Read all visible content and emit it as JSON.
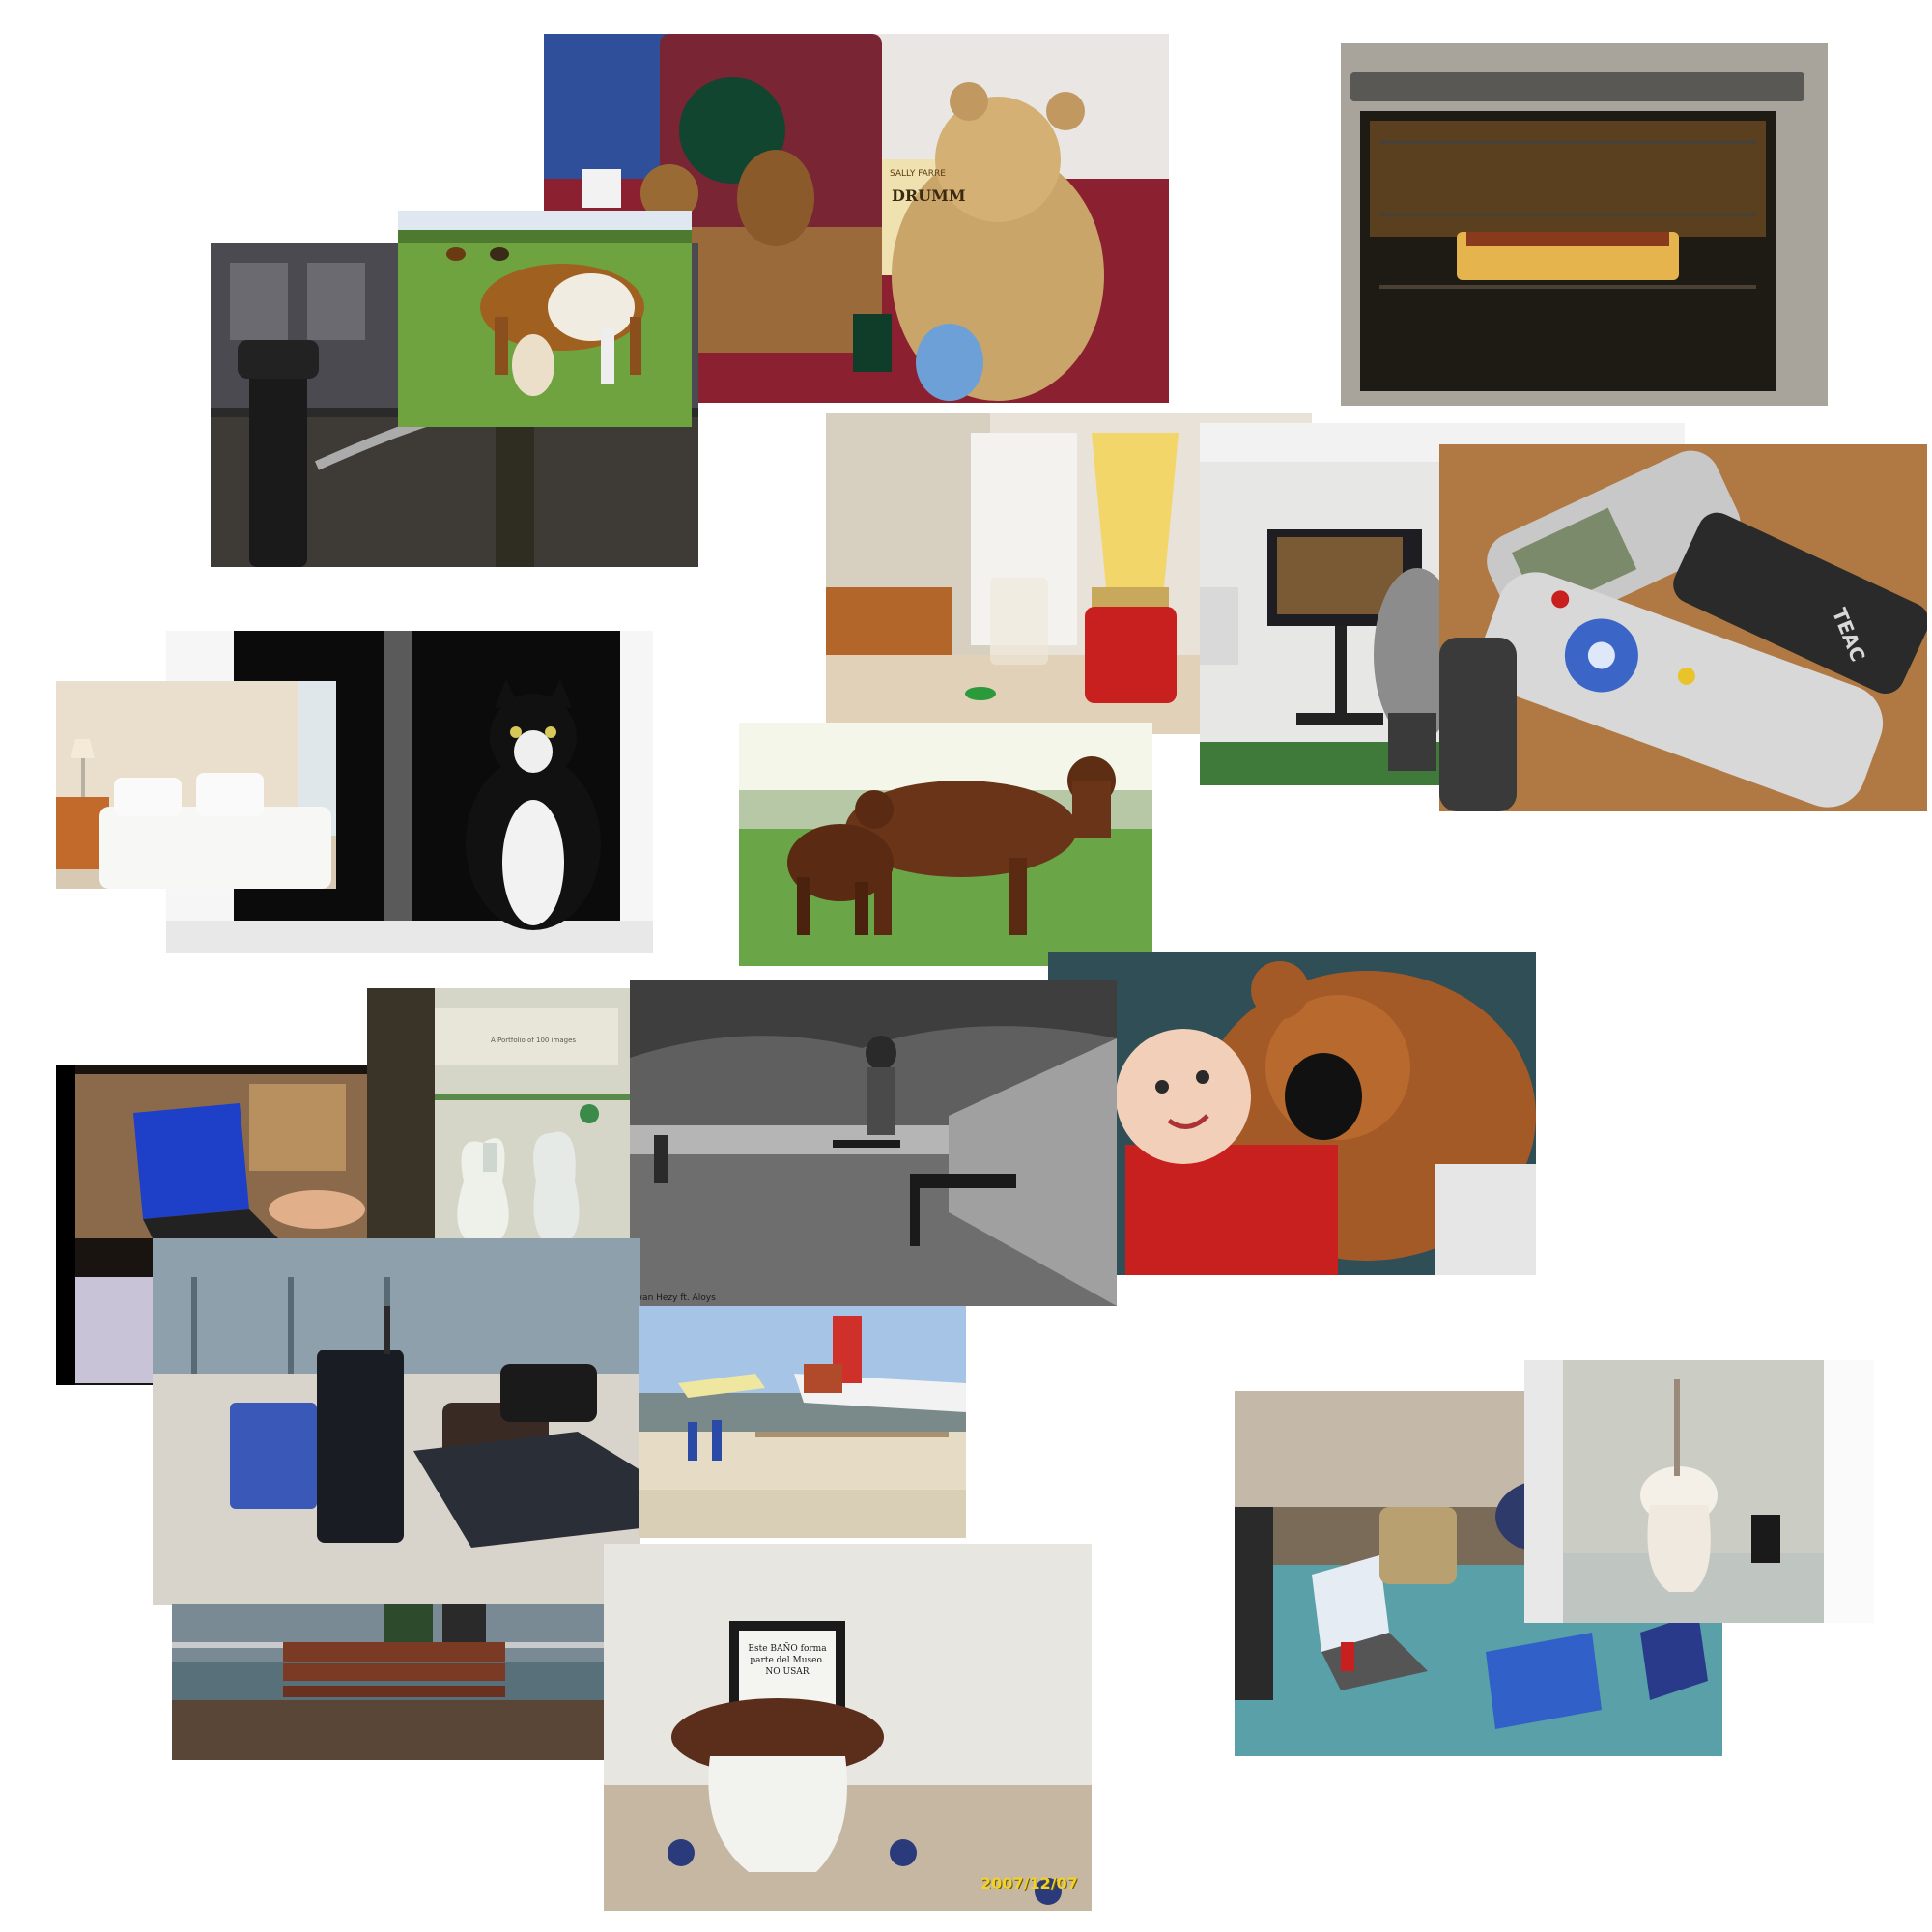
{
  "collage": {
    "background": "#ffffff",
    "photos": [
      {
        "id": "teddy-picnic",
        "subject": "teddy bears with picnic basket and book"
      },
      {
        "id": "cow-grazing",
        "subject": "brown and white cow grazing in pasture"
      },
      {
        "id": "fire-hydrant",
        "subject": "fire hydrant spraying water on street"
      },
      {
        "id": "oven",
        "subject": "casserole baking in oven"
      },
      {
        "id": "blender",
        "subject": "red blender with yellow smoothie in kitchen"
      },
      {
        "id": "video-game-room",
        "subject": "person playing video game on screen in office"
      },
      {
        "id": "remotes",
        "subject": "pile of remote controls on table"
      },
      {
        "id": "bedroom",
        "subject": "white bed with lamp and nightstand"
      },
      {
        "id": "cat-window",
        "subject": "black and white cat sitting in window"
      },
      {
        "id": "cows-field",
        "subject": "brown cow and calf in grassy field"
      },
      {
        "id": "baby-teddy",
        "subject": "baby lying with large brown teddy bear"
      },
      {
        "id": "laptop-desk",
        "subject": "hand using laptop on cluttered desk"
      },
      {
        "id": "vases-museum",
        "subject": "white vases in museum display"
      },
      {
        "id": "skateboarder",
        "subject": "black and white photo of skateboarder jumping on promenade"
      },
      {
        "id": "airport-luggage",
        "subject": "luggage by seats in airport terminal"
      },
      {
        "id": "airfield",
        "subject": "people walking near small airplane at airfield"
      },
      {
        "id": "bench-pier",
        "subject": "bench on pier overlooking water"
      },
      {
        "id": "museum-toilet",
        "subject": "old toilet with framed sign"
      },
      {
        "id": "laptops-party",
        "subject": "people with laptops around cluttered table"
      },
      {
        "id": "toilet-stall",
        "subject": "toilet in tiled bathroom stall"
      }
    ],
    "texts": {
      "book_title": "DRUMM",
      "book_author": "SALLY FARRE",
      "museum_sign_title": "A Portfolio of 100 images",
      "toilet_sign": "Este BAÑO forma\nparte del Museo.\nNO USAR",
      "date_stamp": "2007/12/07",
      "skate_credit": "Ewan Hezy ft. Aloys",
      "remote_brand": "TEAC"
    },
    "colors": {
      "accent_red": "#c8201e",
      "grass": "#5e9a3a",
      "teddy_tan": "#c9a56a",
      "teddy_brown": "#a35a26"
    }
  }
}
